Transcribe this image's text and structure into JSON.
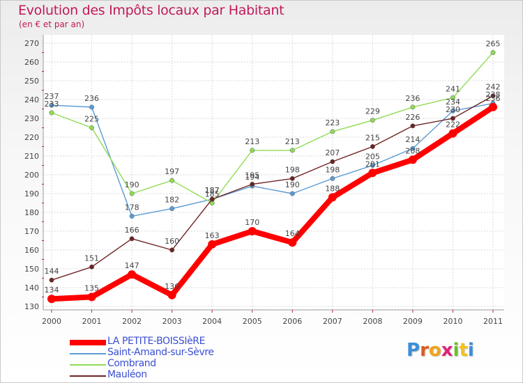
{
  "chart_data": {
    "type": "line",
    "title": "Evolution des Impôts locaux par Habitant",
    "subtitle": "(en € et par an)",
    "xlabel": "",
    "ylabel": "",
    "categories": [
      "2000",
      "2001",
      "2002",
      "2003",
      "2004",
      "2005",
      "2006",
      "2007",
      "2008",
      "2009",
      "2010",
      "2011"
    ],
    "ylim": [
      130,
      270
    ],
    "yticks": [
      130,
      140,
      150,
      160,
      170,
      180,
      190,
      200,
      210,
      220,
      230,
      240,
      250,
      260,
      270
    ],
    "grid": true,
    "legend_position": "bottom-left",
    "series": [
      {
        "name": "LA PETITE-BOISSIèRE",
        "color": "#ff0000",
        "values": [
          134,
          135,
          147,
          136,
          163,
          170,
          164,
          188,
          201,
          208,
          222,
          236
        ],
        "labels": [
          "134",
          "135",
          "147",
          "136",
          "163",
          "170",
          "164",
          "188",
          "201",
          "208",
          "222",
          "236"
        ]
      },
      {
        "name": "Saint-Amand-sur-Sèvre",
        "color": "#5b9bd5",
        "values": [
          237,
          236,
          178,
          182,
          187,
          194,
          190,
          198,
          205,
          214,
          234,
          238
        ],
        "labels": [
          "237",
          "236",
          "178",
          "182",
          "187",
          "194",
          "190",
          "198",
          "205",
          "214",
          "234",
          "238"
        ]
      },
      {
        "name": "Combrand",
        "color": "#8fdc55",
        "values": [
          233,
          225,
          190,
          197,
          185,
          213,
          213,
          223,
          229,
          236,
          241,
          265
        ],
        "labels": [
          "233",
          "225",
          "190",
          "197",
          "185",
          "213",
          "213",
          "223",
          "229",
          "236",
          "241",
          "265"
        ]
      },
      {
        "name": "Mauléon",
        "color": "#6e2323",
        "values": [
          144,
          151,
          166,
          160,
          187,
          195,
          198,
          207,
          215,
          226,
          230,
          242
        ],
        "labels": [
          "144",
          "151",
          "166",
          "160",
          "187",
          "195",
          "198",
          "207",
          "215",
          "226",
          "230",
          "242"
        ]
      }
    ]
  },
  "logo": {
    "letters": [
      "P",
      "r",
      "o",
      "x",
      "i",
      "t",
      "i"
    ],
    "colors": [
      "#3b8ed8",
      "#e05a1c",
      "#f2a21b",
      "#e0247a",
      "#6dbf2e",
      "#f2c21b",
      "#3b8ed8"
    ]
  }
}
